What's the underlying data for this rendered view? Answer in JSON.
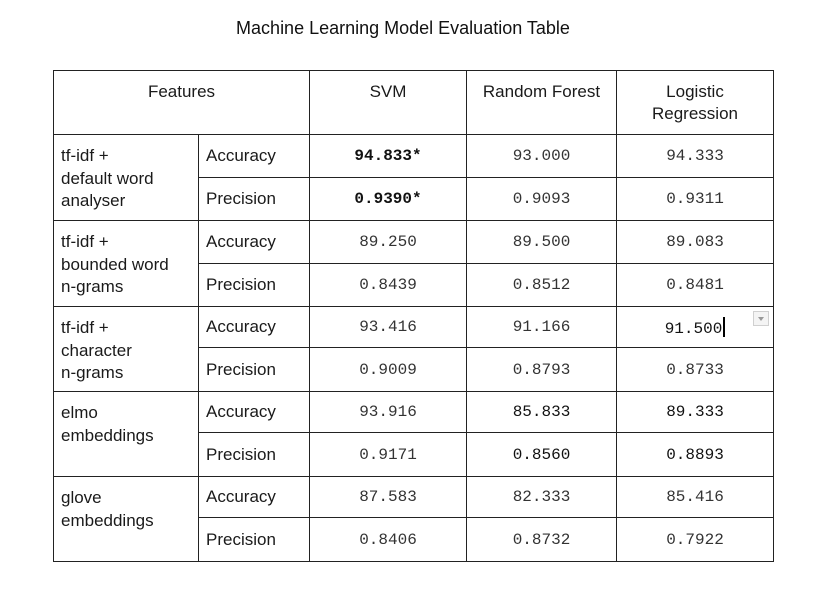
{
  "title": "Machine Learning Model Evaluation Table",
  "headers": {
    "features": "Features",
    "svm": "SVM",
    "random_forest": "Random Forest",
    "logistic_line1": "Logistic",
    "logistic_line2": "Regression"
  },
  "groups": [
    {
      "feature": [
        "tf-idf +",
        "default word",
        "analyser"
      ],
      "rows": [
        {
          "metric": "Accuracy",
          "svm": "94.833*",
          "rf": "93.000",
          "lr": "94.333"
        },
        {
          "metric": "Precision",
          "svm": "0.9390*",
          "rf": "0.9093",
          "lr": "0.9311"
        }
      ]
    },
    {
      "feature": [
        "tf-idf +",
        "bounded word",
        "n-grams"
      ],
      "rows": [
        {
          "metric": "Accuracy",
          "svm": "89.250",
          "rf": "89.500",
          "lr": "89.083"
        },
        {
          "metric": "Precision",
          "svm": "0.8439",
          "rf": "0.8512",
          "lr": "0.8481"
        }
      ]
    },
    {
      "feature": [
        "tf-idf +",
        "character",
        "n-grams"
      ],
      "rows": [
        {
          "metric": "Accuracy",
          "svm": "93.416",
          "rf": "91.166",
          "lr": "91.500"
        },
        {
          "metric": "Precision",
          "svm": "0.9009",
          "rf": "0.8793",
          "lr": "0.8733"
        }
      ]
    },
    {
      "feature": [
        "elmo",
        "embeddings"
      ],
      "rows": [
        {
          "metric": "Accuracy",
          "svm": "93.916",
          "rf": "85.833",
          "lr": "89.333"
        },
        {
          "metric": "Precision",
          "svm": "0.9171",
          "rf": "0.8560",
          "lr": "0.8893"
        }
      ]
    },
    {
      "feature": [
        "glove",
        "embeddings"
      ],
      "rows": [
        {
          "metric": "Accuracy",
          "svm": "87.583",
          "rf": "82.333",
          "lr": "85.416"
        },
        {
          "metric": "Precision",
          "svm": "0.8406",
          "rf": "0.8732",
          "lr": "0.7922"
        }
      ]
    }
  ]
}
